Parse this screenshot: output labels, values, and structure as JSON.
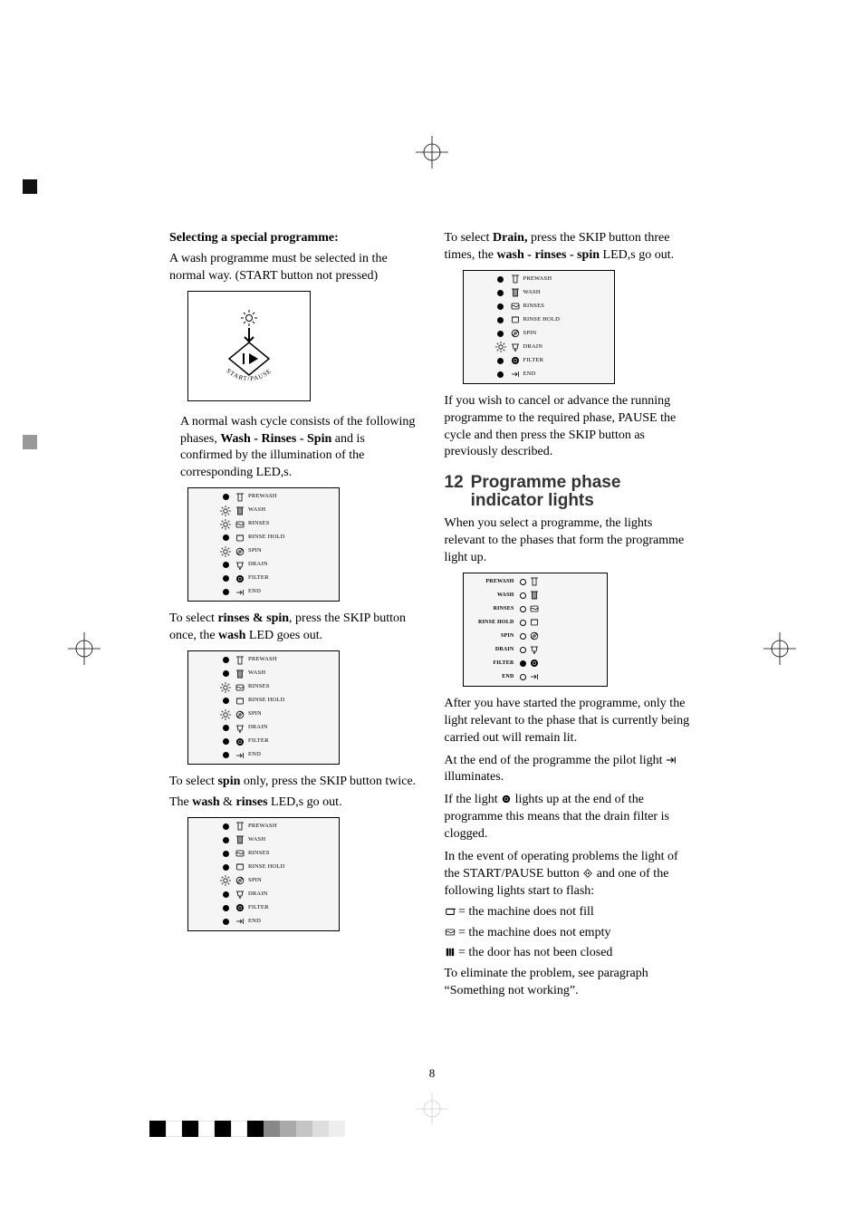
{
  "page_number": "8",
  "left": {
    "sel_heading": "Selecting a special programme:",
    "sel_p1": "A wash programme must be selected in the normal way. (START button not pressed)",
    "start_label": "START/PAUSE",
    "normal_p1": "A normal wash cycle consists of the following phases,",
    "normal_bold": "Wash - Rinses - Spin",
    "normal_p2": " and is confirmed by the illumination of the corresponding LED,s.",
    "rinses_spin_1a": "To select ",
    "rinses_spin_1b": "rinses & spin",
    "rinses_spin_1c": ", press the SKIP button once, the ",
    "rinses_spin_1d": "wash",
    "rinses_spin_1e": " LED goes out.",
    "spin_1a": "To select ",
    "spin_1b": "spin",
    "spin_1c": " only, press the SKIP button twice.",
    "spin_2a": "The ",
    "spin_2b": "wash",
    "spin_2c": " & ",
    "spin_2d": "rinses",
    "spin_2e": " LED,s go out."
  },
  "right": {
    "drain_1a": "To select ",
    "drain_1b": "Drain,",
    "drain_1c": " press the SKIP button three times, the ",
    "drain_2a": "wash - rinses - spin",
    "drain_2b": " LED,s go out.",
    "cancel_p": "If you wish to cancel or advance the running programme to the required phase, PAUSE the cycle and then press the SKIP button as previously described.",
    "h2_num": "12",
    "h2_text": "Programme phase indicator lights",
    "when_p": "When you select a programme, the lights relevant to the phases that form the programme light up.",
    "after_p": "After you have started the programme, only the light relevant to the phase that is currently being carried out will remain lit.",
    "end_p1": "At the end of the programme the pilot light ",
    "end_p2": " illuminates.",
    "filter_p1": "If the light ",
    "filter_p2": " lights up at the end of the programme this means that the drain filter is clogged.",
    "op_p1": "In the event of operating problems the light of the START/PAUSE button ",
    "op_p2": " and one of the following lights start to flash:",
    "err1": " = the machine does not fill",
    "err2": " = the machine does not empty",
    "err3": " = the door has not been closed",
    "elim_p": "To eliminate the problem, see paragraph “Something not working”."
  },
  "phases": {
    "labels": [
      "PREWASH",
      "WASH",
      "RINSES",
      "RINSE HOLD",
      "SPIN",
      "DRAIN",
      "FILTER",
      "END"
    ],
    "panels": {
      "a_lit": [
        false,
        true,
        true,
        false,
        true,
        false,
        false,
        false
      ],
      "b_lit": [
        false,
        false,
        true,
        false,
        true,
        false,
        false,
        false
      ],
      "c_lit": [
        false,
        false,
        false,
        false,
        true,
        false,
        false,
        false
      ],
      "d_lit": [
        false,
        false,
        false,
        false,
        false,
        true,
        false,
        false
      ]
    }
  },
  "colors": {
    "bar": [
      "#000000",
      "#ffffff",
      "#000000",
      "#ffffff",
      "#000000",
      "#ffffff",
      "#000000",
      "#888888",
      "#aaaaaa",
      "#c5c5c5",
      "#dedede",
      "#eeeeee"
    ]
  }
}
